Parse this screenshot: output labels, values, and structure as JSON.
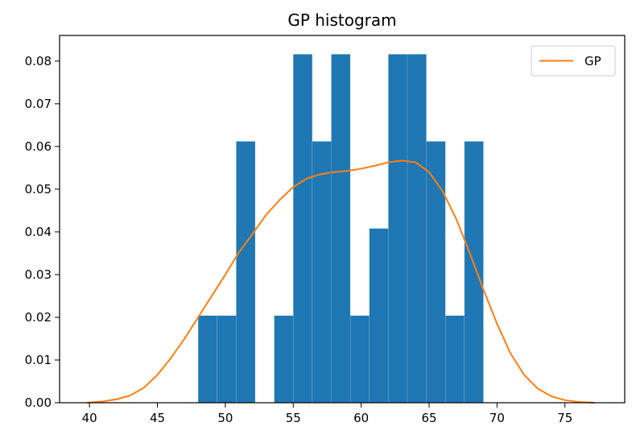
{
  "chart_data": {
    "type": "bar",
    "title": "GP histogram",
    "xlabel": "",
    "ylabel": "",
    "xlim": [
      37.8,
      79.4
    ],
    "ylim": [
      0,
      0.086
    ],
    "x_ticks": [
      40,
      45,
      50,
      55,
      60,
      65,
      70,
      75
    ],
    "x_tick_labels": [
      "40",
      "45",
      "50",
      "55",
      "60",
      "65",
      "70",
      "75"
    ],
    "y_ticks": [
      0.0,
      0.01,
      0.02,
      0.03,
      0.04,
      0.05,
      0.06,
      0.07,
      0.08
    ],
    "y_tick_labels": [
      "0.00",
      "0.01",
      "0.02",
      "0.03",
      "0.04",
      "0.05",
      "0.06",
      "0.07",
      "0.08"
    ],
    "grid": false,
    "legend": {
      "position": "top-right",
      "entries": [
        {
          "label": "GP",
          "color": "#ff7f0e"
        }
      ]
    },
    "histogram": {
      "color": "#1f77b4",
      "bin_edges": [
        48.0,
        49.4,
        50.8,
        52.2,
        53.6,
        55.0,
        56.4,
        57.8,
        59.2,
        60.6,
        62.0,
        63.4,
        64.8,
        66.2,
        67.6,
        69.0
      ],
      "densities": [
        0.0204,
        0.0204,
        0.0612,
        0.0,
        0.0204,
        0.0816,
        0.0612,
        0.0816,
        0.0204,
        0.0408,
        0.0816,
        0.0816,
        0.0612,
        0.0204,
        0.0612
      ]
    },
    "series": [
      {
        "name": "GP",
        "type": "line",
        "color": "#ff7f0e",
        "x": [
          39.8,
          41,
          42,
          43,
          44,
          45,
          46,
          47,
          48,
          49,
          50,
          51,
          52,
          53,
          54,
          55,
          56,
          57,
          58,
          59,
          60,
          61,
          62,
          63,
          64,
          65,
          66,
          67,
          68,
          69,
          70,
          71,
          72,
          73,
          74,
          75,
          76,
          77.2
        ],
        "y": [
          0.0,
          0.0003,
          0.0008,
          0.0017,
          0.0035,
          0.0065,
          0.0105,
          0.015,
          0.02,
          0.025,
          0.03,
          0.0352,
          0.0395,
          0.044,
          0.0475,
          0.0505,
          0.0525,
          0.0535,
          0.054,
          0.0543,
          0.0548,
          0.0555,
          0.0563,
          0.0567,
          0.0563,
          0.054,
          0.0495,
          0.043,
          0.035,
          0.0265,
          0.0185,
          0.0115,
          0.0065,
          0.0033,
          0.0015,
          0.0006,
          0.0002,
          0.0
        ]
      }
    ]
  }
}
